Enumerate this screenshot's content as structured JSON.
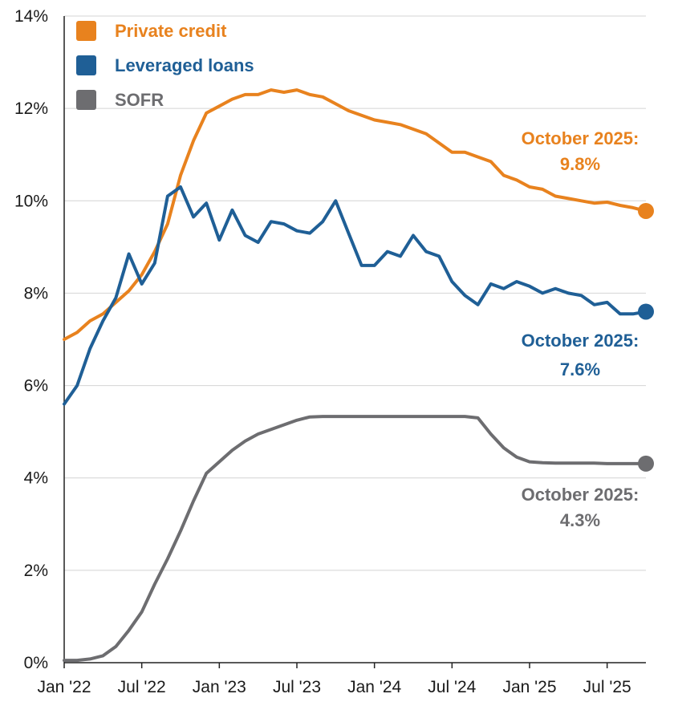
{
  "chart_data": {
    "type": "line",
    "title": "",
    "xlabel": "",
    "ylabel": "",
    "ylim": [
      0,
      14
    ],
    "yticks": [
      0,
      2,
      4,
      6,
      8,
      10,
      12,
      14
    ],
    "ytick_labels": [
      "0%",
      "2%",
      "4%",
      "6%",
      "8%",
      "10%",
      "12%",
      "14%"
    ],
    "xlim": [
      "2022-01",
      "2025-10"
    ],
    "xticks": [
      "2022-01",
      "2022-07",
      "2023-01",
      "2023-07",
      "2024-01",
      "2024-07",
      "2025-01",
      "2025-07"
    ],
    "xtick_labels": [
      "Jan '22",
      "Jul '22",
      "Jan '23",
      "Jul '23",
      "Jan '24",
      "Jul '24",
      "Jan '25",
      "Jul '25"
    ],
    "grid": "horizontal",
    "legend_position": "top-left",
    "series": [
      {
        "name": "Private credit",
        "color": "#e8821e",
        "x": [
          "2022-01",
          "2022-02",
          "2022-03",
          "2022-04",
          "2022-05",
          "2022-06",
          "2022-07",
          "2022-08",
          "2022-09",
          "2022-10",
          "2022-11",
          "2022-12",
          "2023-01",
          "2023-02",
          "2023-03",
          "2023-04",
          "2023-05",
          "2023-06",
          "2023-07",
          "2023-08",
          "2023-09",
          "2023-10",
          "2023-11",
          "2023-12",
          "2024-01",
          "2024-02",
          "2024-03",
          "2024-04",
          "2024-05",
          "2024-06",
          "2024-07",
          "2024-08",
          "2024-09",
          "2024-10",
          "2024-11",
          "2024-12",
          "2025-01",
          "2025-02",
          "2025-03",
          "2025-04",
          "2025-05",
          "2025-06",
          "2025-07",
          "2025-08",
          "2025-09",
          "2025-10"
        ],
        "values": [
          7.0,
          7.15,
          7.4,
          7.55,
          7.8,
          8.05,
          8.4,
          8.9,
          9.5,
          10.55,
          11.3,
          11.9,
          12.05,
          12.2,
          12.3,
          12.3,
          12.4,
          12.35,
          12.4,
          12.3,
          12.25,
          12.1,
          11.95,
          11.85,
          11.75,
          11.7,
          11.65,
          11.55,
          11.45,
          11.25,
          11.05,
          11.05,
          10.95,
          10.85,
          10.55,
          10.45,
          10.3,
          10.25,
          10.1,
          10.05,
          10.0,
          9.95,
          9.97,
          9.9,
          9.85,
          9.78
        ],
        "end_label": [
          "October 2025:",
          "9.8%"
        ]
      },
      {
        "name": "Leveraged loans",
        "color": "#1f5f96",
        "x": [
          "2022-01",
          "2022-02",
          "2022-03",
          "2022-04",
          "2022-05",
          "2022-06",
          "2022-07",
          "2022-08",
          "2022-09",
          "2022-10",
          "2022-11",
          "2022-12",
          "2023-01",
          "2023-02",
          "2023-03",
          "2023-04",
          "2023-05",
          "2023-06",
          "2023-07",
          "2023-08",
          "2023-09",
          "2023-10",
          "2023-11",
          "2023-12",
          "2024-01",
          "2024-02",
          "2024-03",
          "2024-04",
          "2024-05",
          "2024-06",
          "2024-07",
          "2024-08",
          "2024-09",
          "2024-10",
          "2024-11",
          "2024-12",
          "2025-01",
          "2025-02",
          "2025-03",
          "2025-04",
          "2025-05",
          "2025-06",
          "2025-07",
          "2025-08",
          "2025-09",
          "2025-10"
        ],
        "values": [
          5.6,
          6.0,
          6.8,
          7.4,
          7.9,
          8.85,
          8.2,
          8.65,
          10.1,
          10.3,
          9.65,
          9.95,
          9.15,
          9.8,
          9.25,
          9.1,
          9.55,
          9.5,
          9.35,
          9.3,
          9.55,
          10.0,
          9.3,
          8.6,
          8.6,
          8.9,
          8.8,
          9.25,
          8.9,
          8.8,
          8.25,
          7.95,
          7.75,
          8.2,
          8.1,
          8.25,
          8.15,
          8.0,
          8.1,
          8.0,
          7.95,
          7.75,
          7.8,
          7.55,
          7.55,
          7.6
        ],
        "end_label": [
          "October 2025:",
          "7.6%"
        ]
      },
      {
        "name": "SOFR",
        "color": "#6d6d70",
        "x": [
          "2022-01",
          "2022-02",
          "2022-03",
          "2022-04",
          "2022-05",
          "2022-06",
          "2022-07",
          "2022-08",
          "2022-09",
          "2022-10",
          "2022-11",
          "2022-12",
          "2023-01",
          "2023-02",
          "2023-03",
          "2023-04",
          "2023-05",
          "2023-06",
          "2023-07",
          "2023-08",
          "2023-09",
          "2023-10",
          "2023-11",
          "2023-12",
          "2024-01",
          "2024-02",
          "2024-03",
          "2024-04",
          "2024-05",
          "2024-06",
          "2024-07",
          "2024-08",
          "2024-09",
          "2024-10",
          "2024-11",
          "2024-12",
          "2025-01",
          "2025-02",
          "2025-03",
          "2025-04",
          "2025-05",
          "2025-06",
          "2025-07",
          "2025-08",
          "2025-09",
          "2025-10"
        ],
        "values": [
          0.05,
          0.05,
          0.08,
          0.15,
          0.35,
          0.7,
          1.1,
          1.7,
          2.25,
          2.85,
          3.5,
          4.1,
          4.35,
          4.6,
          4.8,
          4.95,
          5.05,
          5.15,
          5.25,
          5.32,
          5.33,
          5.33,
          5.33,
          5.33,
          5.33,
          5.33,
          5.33,
          5.33,
          5.33,
          5.33,
          5.33,
          5.33,
          5.3,
          4.95,
          4.65,
          4.45,
          4.35,
          4.33,
          4.32,
          4.32,
          4.32,
          4.32,
          4.31,
          4.31,
          4.31,
          4.31
        ],
        "end_label": [
          "October 2025:",
          "4.3%"
        ]
      }
    ]
  }
}
